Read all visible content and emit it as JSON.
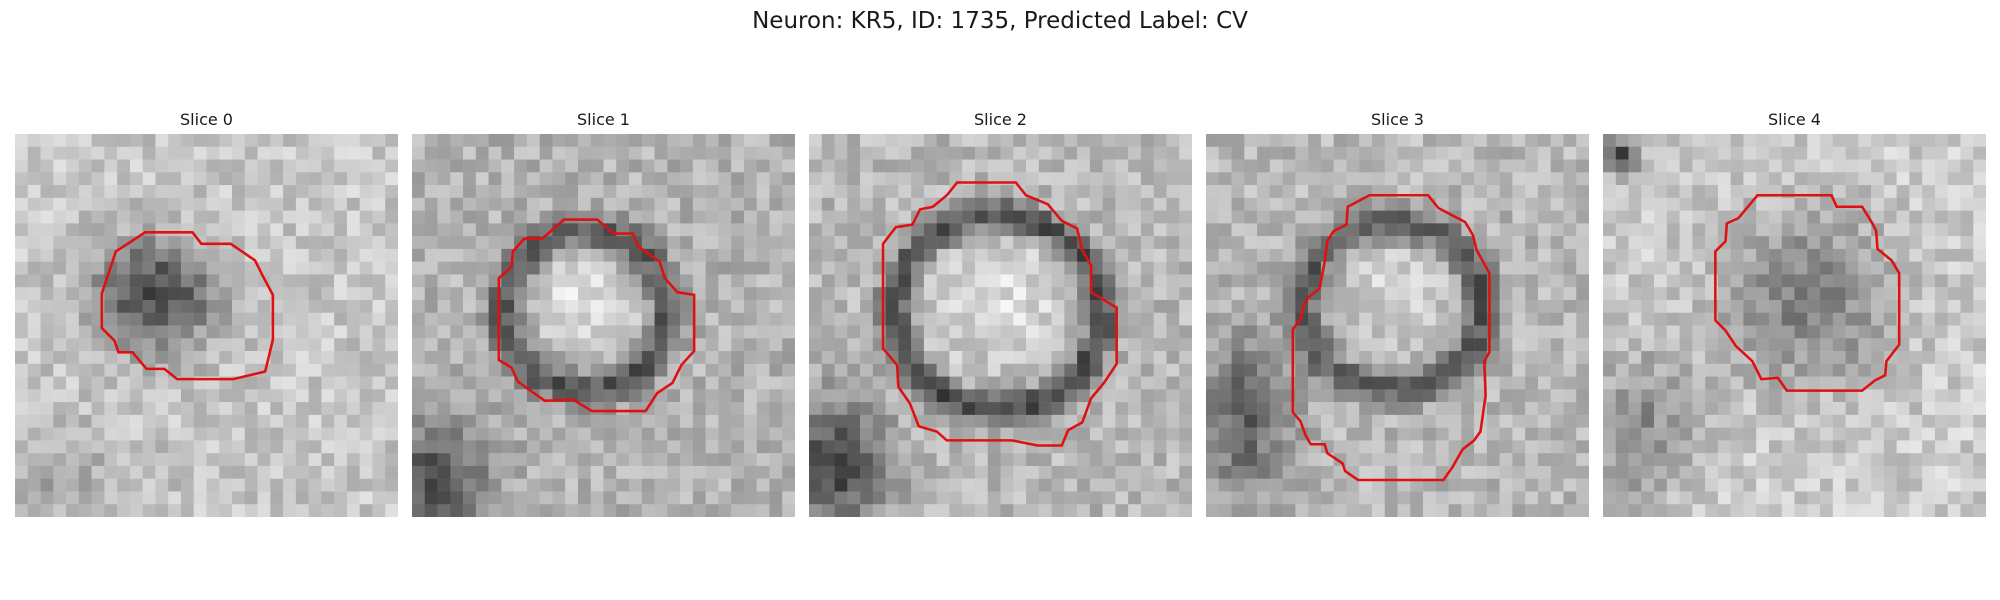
{
  "title": "Neuron: KR5, ID: 1735, Predicted Label: CV",
  "panels": [
    {
      "label": "Slice 0"
    },
    {
      "label": "Slice 1"
    },
    {
      "label": "Slice 2"
    },
    {
      "label": "Slice 3"
    },
    {
      "label": "Slice 4"
    }
  ],
  "contour_color": "#e01010"
}
